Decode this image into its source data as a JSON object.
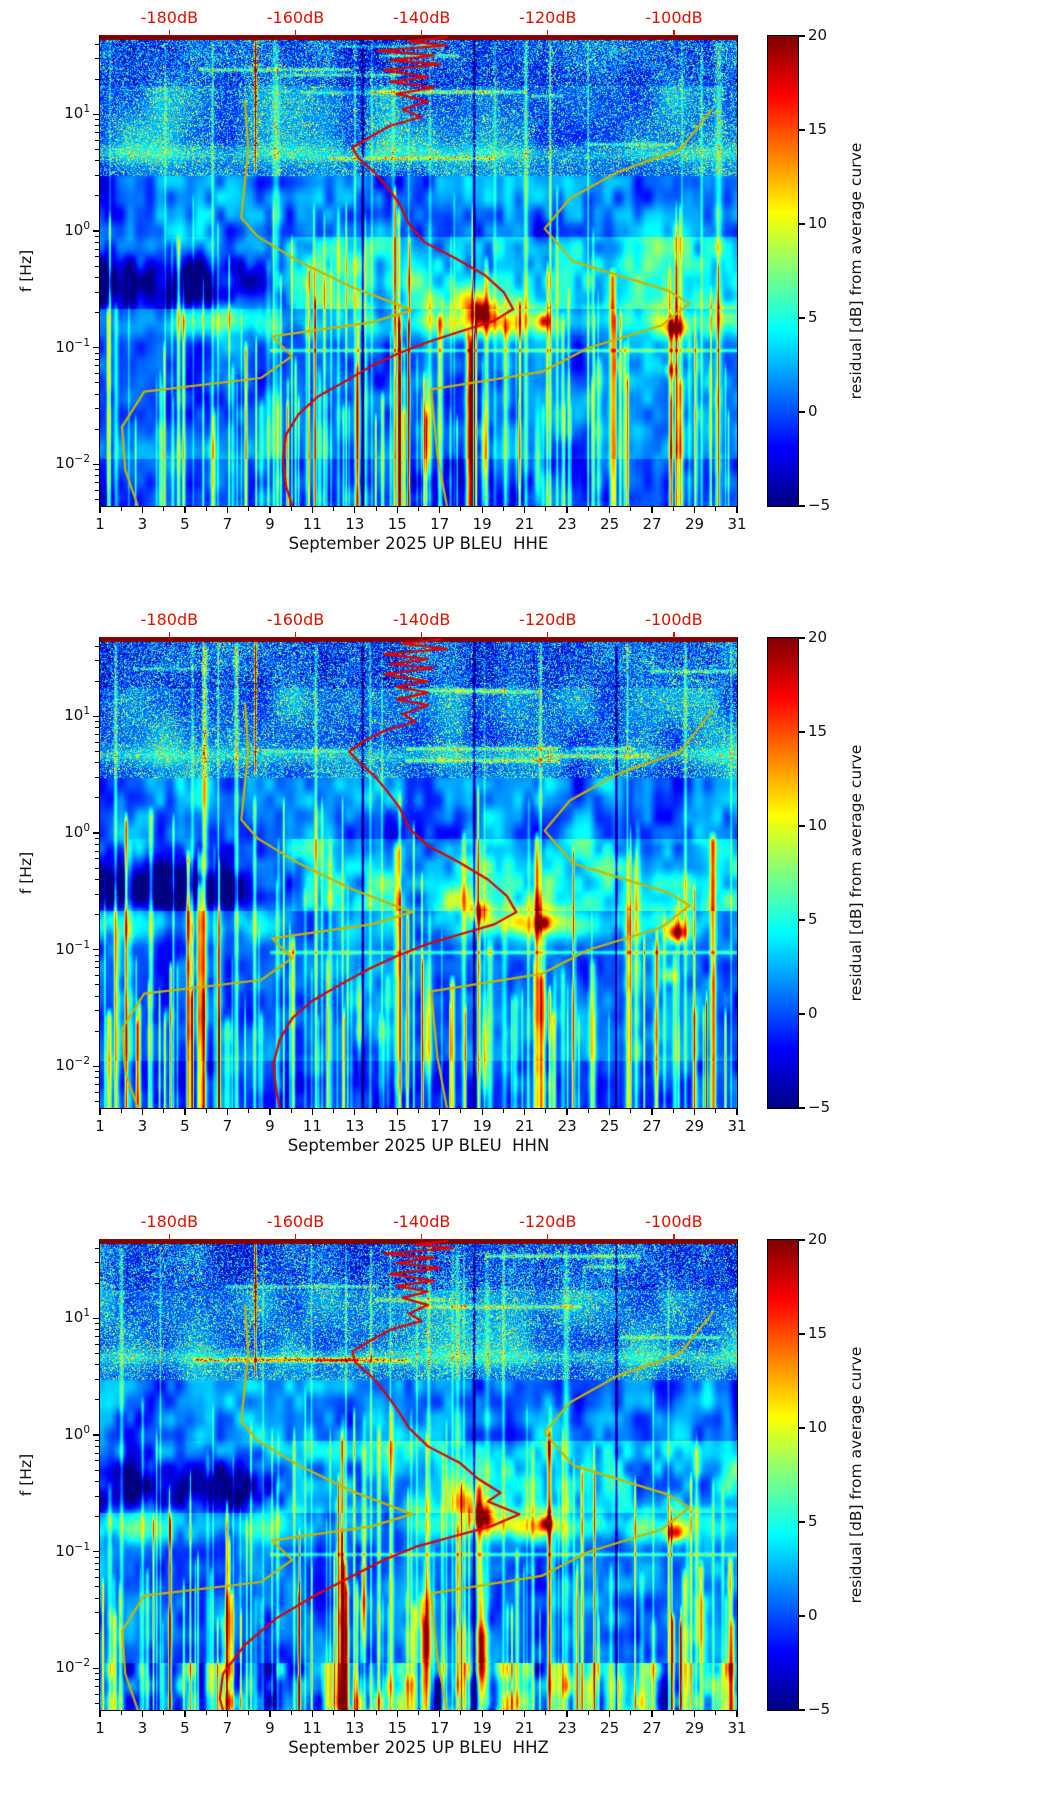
{
  "chart_data": {
    "type": "heatmap",
    "subtype": "seismic-spectrogram-residual",
    "colormap": "jet",
    "x_axis": {
      "ticks": [
        1,
        3,
        5,
        7,
        9,
        11,
        13,
        15,
        17,
        19,
        21,
        23,
        25,
        27,
        29,
        31
      ],
      "range_days": [
        1,
        31
      ]
    },
    "y_axis": {
      "label": "f [Hz]",
      "scale": "log",
      "range_hz": [
        0.0044,
        47
      ],
      "major_tick_exponents": [
        1,
        0,
        -1,
        -2
      ]
    },
    "top_axis": {
      "color": "#dd1100",
      "unit": "dB",
      "tick_values_db": [
        -180,
        -160,
        -140,
        -120,
        -100
      ],
      "tick_labels": [
        "-180dB",
        "-160dB",
        "-140dB",
        "-120dB",
        "-100dB"
      ],
      "range_db": [
        -191,
        -90
      ]
    },
    "colorbar": {
      "label": "residual [dB] from average curve",
      "tick_values": [
        20,
        15,
        10,
        5,
        0,
        -5
      ],
      "tick_labels": [
        "20",
        "15",
        "10",
        "5",
        "0",
        "−5"
      ],
      "range": [
        -5,
        20
      ]
    },
    "noise_model_curves": {
      "color": "#c8b400",
      "nlnm_db_hz": [
        [
          -168,
          13
        ],
        [
          -167.5,
          5
        ],
        [
          -168.6,
          1.3
        ],
        [
          -166,
          0.9
        ],
        [
          -159.5,
          0.55
        ],
        [
          -151,
          0.33
        ],
        [
          -141.5,
          0.21
        ],
        [
          -148,
          0.165
        ],
        [
          -163.7,
          0.125
        ],
        [
          -160.5,
          0.085
        ],
        [
          -165.5,
          0.055
        ],
        [
          -184,
          0.042
        ],
        [
          -187.5,
          0.021
        ],
        [
          -187,
          0.009
        ],
        [
          -185,
          0.0044
        ]
      ],
      "nhnm_db_hz": [
        [
          -94,
          11
        ],
        [
          -99,
          5
        ],
        [
          -109,
          3.2
        ],
        [
          -116.5,
          1.9
        ],
        [
          -120.5,
          1.05
        ],
        [
          -116,
          0.55
        ],
        [
          -101,
          0.31
        ],
        [
          -97.5,
          0.24
        ],
        [
          -102,
          0.155
        ],
        [
          -113.5,
          0.1
        ],
        [
          -121,
          0.062
        ],
        [
          -138.5,
          0.044
        ],
        [
          -137.5,
          0.012
        ],
        [
          -136,
          0.0044
        ]
      ]
    },
    "psd_curve_color": "#e00000",
    "panels": [
      {
        "title": "September 2025 UP BLEU  HHE",
        "seed": 11,
        "bottom_band": false,
        "dark_day_lines": [
          13.35,
          18.6
        ],
        "hf_events": [
          {
            "day": 8.3,
            "amp": 13
          }
        ],
        "hotspots": [
          {
            "day": 18.9,
            "f": 0.2,
            "amp": 13,
            "dw": 0.5,
            "fw": 0.09
          },
          {
            "day": 18.2,
            "f": 0.27,
            "amp": 7,
            "dw": 0.9,
            "fw": 0.12
          },
          {
            "day": 21.9,
            "f": 0.17,
            "amp": 10,
            "dw": 0.25,
            "fw": 0.06
          },
          {
            "day": 28.1,
            "f": 0.145,
            "amp": 12,
            "dw": 0.45,
            "fw": 0.07
          },
          {
            "day": 27.9,
            "f": 0.065,
            "amp": 8,
            "dw": 0.3,
            "fw": 0.06
          },
          {
            "day": 16.4,
            "f": 0.02,
            "amp": 11,
            "dw": 0.2,
            "fw": 0.45
          },
          {
            "day": 19.1,
            "f": 0.013,
            "amp": 9,
            "dw": 0.15,
            "fw": 0.4
          },
          {
            "day": 21.6,
            "f": 0.012,
            "amp": 8,
            "dw": 0.15,
            "fw": 0.35
          },
          {
            "day": 8.3,
            "f": 25,
            "amp": 12,
            "dw": 0.06,
            "fw": 0.5
          }
        ],
        "psd_curve_db_hz": [
          [
            -136,
            46
          ],
          [
            -142,
            42
          ],
          [
            -136,
            39
          ],
          [
            -147,
            35
          ],
          [
            -138,
            32
          ],
          [
            -145,
            29
          ],
          [
            -137,
            27
          ],
          [
            -146,
            24
          ],
          [
            -139,
            21
          ],
          [
            -145,
            19
          ],
          [
            -138,
            17
          ],
          [
            -144,
            15
          ],
          [
            -139,
            13
          ],
          [
            -143,
            11
          ],
          [
            -140,
            9.5
          ],
          [
            -145,
            8
          ],
          [
            -148,
            6.5
          ],
          [
            -151,
            5.2
          ],
          [
            -150,
            4.2
          ],
          [
            -147.5,
            3.2
          ],
          [
            -145.5,
            2.4
          ],
          [
            -143.5,
            1.7
          ],
          [
            -142,
            1.15
          ],
          [
            -139.5,
            0.8
          ],
          [
            -134.5,
            0.58
          ],
          [
            -130,
            0.42
          ],
          [
            -127,
            0.3
          ],
          [
            -125.5,
            0.215
          ],
          [
            -128.5,
            0.17
          ],
          [
            -133.5,
            0.14
          ],
          [
            -139,
            0.112
          ],
          [
            -143.5,
            0.09
          ],
          [
            -147.5,
            0.072
          ],
          [
            -152,
            0.052
          ],
          [
            -156.5,
            0.038
          ],
          [
            -159.5,
            0.027
          ],
          [
            -161.5,
            0.018
          ],
          [
            -162,
            0.011
          ],
          [
            -161.5,
            0.0065
          ],
          [
            -160.5,
            0.0044
          ]
        ]
      },
      {
        "title": "September 2025 UP BLEU  HHN",
        "seed": 22,
        "bottom_band": false,
        "dark_day_lines": [
          13.35,
          18.6,
          25.3
        ],
        "hf_events": [
          {
            "day": 8.3,
            "amp": 13
          }
        ],
        "hotspots": [
          {
            "day": 18.8,
            "f": 0.21,
            "amp": 12,
            "dw": 0.5,
            "fw": 0.09
          },
          {
            "day": 18.1,
            "f": 0.28,
            "amp": 7,
            "dw": 0.9,
            "fw": 0.12
          },
          {
            "day": 21.9,
            "f": 0.17,
            "amp": 10,
            "dw": 0.25,
            "fw": 0.06
          },
          {
            "day": 28.2,
            "f": 0.14,
            "amp": 14,
            "dw": 0.45,
            "fw": 0.07
          },
          {
            "day": 27.8,
            "f": 0.06,
            "amp": 7,
            "dw": 0.3,
            "fw": 0.06
          },
          {
            "day": 16.4,
            "f": 0.02,
            "amp": 10,
            "dw": 0.2,
            "fw": 0.45
          },
          {
            "day": 19.1,
            "f": 0.013,
            "amp": 9,
            "dw": 0.15,
            "fw": 0.4
          },
          {
            "day": 13.2,
            "f": 0.025,
            "amp": 8,
            "dw": 0.12,
            "fw": 0.35
          },
          {
            "day": 8.3,
            "f": 25,
            "amp": 12,
            "dw": 0.06,
            "fw": 0.5
          }
        ],
        "psd_curve_db_hz": [
          [
            -137,
            46
          ],
          [
            -143,
            42
          ],
          [
            -136,
            38
          ],
          [
            -146,
            34
          ],
          [
            -139,
            31
          ],
          [
            -145,
            28
          ],
          [
            -138,
            26
          ],
          [
            -146,
            23
          ],
          [
            -139,
            20
          ],
          [
            -144,
            18
          ],
          [
            -139,
            16
          ],
          [
            -144,
            14
          ],
          [
            -139,
            12.5
          ],
          [
            -143,
            10.5
          ],
          [
            -141,
            9
          ],
          [
            -146,
            7.5
          ],
          [
            -149,
            6.2
          ],
          [
            -151.5,
            5
          ],
          [
            -150,
            4.1
          ],
          [
            -147.5,
            3.1
          ],
          [
            -145.5,
            2.3
          ],
          [
            -143.5,
            1.65
          ],
          [
            -142,
            1.1
          ],
          [
            -139,
            0.78
          ],
          [
            -134,
            0.56
          ],
          [
            -129.5,
            0.4
          ],
          [
            -126.5,
            0.29
          ],
          [
            -125,
            0.21
          ],
          [
            -128.5,
            0.165
          ],
          [
            -134,
            0.135
          ],
          [
            -139.5,
            0.11
          ],
          [
            -144,
            0.088
          ],
          [
            -148,
            0.07
          ],
          [
            -153,
            0.05
          ],
          [
            -157.5,
            0.036
          ],
          [
            -160.5,
            0.026
          ],
          [
            -162.5,
            0.017
          ],
          [
            -163.5,
            0.0105
          ],
          [
            -163,
            0.006
          ],
          [
            -162.5,
            0.0044
          ]
        ]
      },
      {
        "title": "September 2025 UP BLEU  HHZ",
        "seed": 33,
        "bottom_band": true,
        "dark_day_lines": [
          18.6,
          25.3
        ],
        "hf_events": [
          {
            "day": 8.3,
            "amp": 13
          }
        ],
        "hotspots": [
          {
            "day": 19.0,
            "f": 0.2,
            "amp": 13,
            "dw": 0.5,
            "fw": 0.09
          },
          {
            "day": 18.2,
            "f": 0.27,
            "amp": 7,
            "dw": 0.8,
            "fw": 0.12
          },
          {
            "day": 22.0,
            "f": 0.175,
            "amp": 11,
            "dw": 0.3,
            "fw": 0.06
          },
          {
            "day": 28.1,
            "f": 0.145,
            "amp": 12,
            "dw": 0.45,
            "fw": 0.07
          },
          {
            "day": 19.0,
            "f": 0.012,
            "amp": 16,
            "dw": 0.18,
            "fw": 0.55
          },
          {
            "day": 13.4,
            "f": 0.04,
            "amp": 10,
            "dw": 0.12,
            "fw": 0.4
          },
          {
            "day": 16.4,
            "f": 0.02,
            "amp": 9,
            "dw": 0.2,
            "fw": 0.4
          },
          {
            "day": 8.3,
            "f": 25,
            "amp": 12,
            "dw": 0.06,
            "fw": 0.5
          }
        ],
        "psd_curve_db_hz": [
          [
            -136,
            46
          ],
          [
            -141,
            43
          ],
          [
            -135,
            40
          ],
          [
            -146,
            36
          ],
          [
            -138,
            33
          ],
          [
            -144,
            30
          ],
          [
            -137,
            27
          ],
          [
            -145,
            24
          ],
          [
            -138,
            21
          ],
          [
            -144,
            19
          ],
          [
            -139,
            17
          ],
          [
            -143,
            15
          ],
          [
            -139,
            13
          ],
          [
            -142,
            11
          ],
          [
            -140,
            9.5
          ],
          [
            -145,
            8
          ],
          [
            -148,
            6.5
          ],
          [
            -151,
            5.2
          ],
          [
            -150.5,
            4.2
          ],
          [
            -148,
            3.2
          ],
          [
            -146,
            2.4
          ],
          [
            -144,
            1.7
          ],
          [
            -142,
            1.15
          ],
          [
            -139,
            0.8
          ],
          [
            -134,
            0.58
          ],
          [
            -131,
            0.42
          ],
          [
            -127.5,
            0.32
          ],
          [
            -129.5,
            0.27
          ],
          [
            -124.5,
            0.21
          ],
          [
            -129,
            0.165
          ],
          [
            -135,
            0.135
          ],
          [
            -141,
            0.11
          ],
          [
            -146,
            0.085
          ],
          [
            -151,
            0.062
          ],
          [
            -157,
            0.042
          ],
          [
            -163,
            0.027
          ],
          [
            -168,
            0.016
          ],
          [
            -171.5,
            0.009
          ],
          [
            -172,
            0.0055
          ],
          [
            -171.5,
            0.0044
          ]
        ]
      }
    ]
  }
}
